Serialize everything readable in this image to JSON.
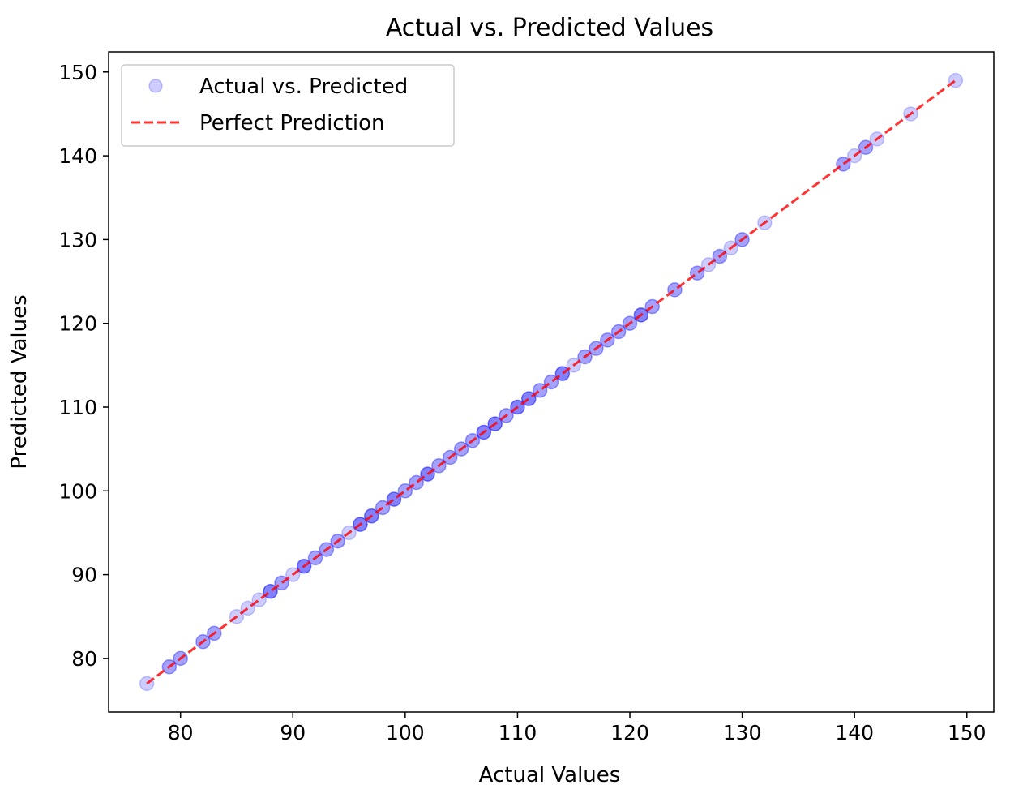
{
  "chart_data": {
    "type": "scatter",
    "title": "Actual vs. Predicted Values",
    "xlabel": "Actual Values",
    "ylabel": "Predicted Values",
    "xlim": [
      73.6,
      152.4
    ],
    "ylim": [
      73.6,
      152.4
    ],
    "xticks": [
      80,
      90,
      100,
      110,
      120,
      130,
      140,
      150
    ],
    "yticks": [
      80,
      90,
      100,
      110,
      120,
      130,
      140,
      150
    ],
    "grid": false,
    "legend_position": "top-left",
    "series": [
      {
        "name": "Actual vs. Predicted",
        "kind": "scatter",
        "color": "#0000ff",
        "alpha": 0.2,
        "x": [
          77,
          79,
          79,
          80,
          80,
          82,
          82,
          83,
          83,
          85,
          86,
          87,
          88,
          88,
          88,
          89,
          89,
          90,
          91,
          91,
          91,
          92,
          92,
          93,
          93,
          94,
          94,
          95,
          96,
          96,
          96,
          97,
          97,
          97,
          98,
          98,
          99,
          99,
          99,
          100,
          100,
          101,
          101,
          102,
          102,
          102,
          103,
          103,
          104,
          104,
          105,
          105,
          106,
          106,
          107,
          107,
          107,
          108,
          108,
          108,
          109,
          109,
          110,
          110,
          110,
          111,
          111,
          111,
          112,
          112,
          113,
          113,
          114,
          114,
          114,
          115,
          116,
          116,
          117,
          117,
          118,
          118,
          119,
          119,
          120,
          120,
          121,
          121,
          121,
          122,
          122,
          124,
          124,
          126,
          126,
          127,
          128,
          128,
          129,
          130,
          130,
          132,
          139,
          139,
          140,
          141,
          141,
          142,
          145,
          149
        ],
        "y": [
          77,
          79,
          79,
          80,
          80,
          82,
          82,
          83,
          83,
          85,
          86,
          87,
          88,
          88,
          88,
          89,
          89,
          90,
          91,
          91,
          91,
          92,
          92,
          93,
          93,
          94,
          94,
          95,
          96,
          96,
          96,
          97,
          97,
          97,
          98,
          98,
          99,
          99,
          99,
          100,
          100,
          101,
          101,
          102,
          102,
          102,
          103,
          103,
          104,
          104,
          105,
          105,
          106,
          106,
          107,
          107,
          107,
          108,
          108,
          108,
          109,
          109,
          110,
          110,
          110,
          111,
          111,
          111,
          112,
          112,
          113,
          113,
          114,
          114,
          114,
          115,
          116,
          116,
          117,
          117,
          118,
          118,
          119,
          119,
          120,
          120,
          121,
          121,
          121,
          122,
          122,
          124,
          124,
          126,
          126,
          127,
          128,
          128,
          129,
          130,
          130,
          132,
          139,
          139,
          140,
          141,
          141,
          142,
          145,
          149
        ]
      },
      {
        "name": "Perfect Prediction",
        "kind": "line",
        "color": "#ff0000",
        "style": "dashed",
        "x": [
          77,
          149
        ],
        "y": [
          77,
          149
        ]
      }
    ]
  }
}
